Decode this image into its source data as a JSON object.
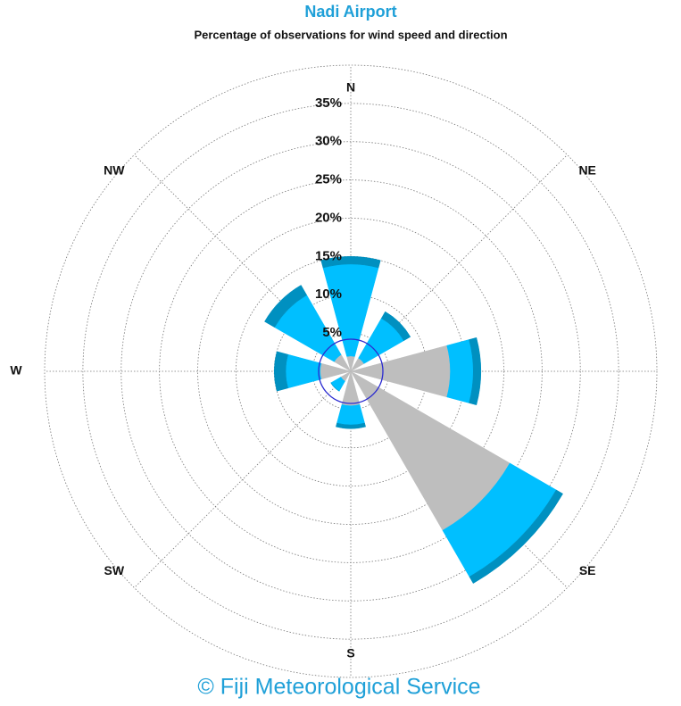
{
  "chart_data": {
    "type": "windrose",
    "title": "Nadi Airport",
    "subtitle": "Percentage of observations for wind speed and direction",
    "footer": "© Fiji Meteorological Service",
    "categories": [
      "N",
      "NE",
      "E",
      "SE",
      "S",
      "SW",
      "W",
      "NW"
    ],
    "series": [
      {
        "color": "#bebebe",
        "values": [
          2,
          2,
          13,
          24,
          4.5,
          1.5,
          4,
          2.5
        ]
      },
      {
        "color": "#00bfff",
        "values": [
          12,
          6,
          3,
          7,
          2.5,
          1.5,
          4.5,
          9
        ]
      },
      {
        "color": "#0090c0",
        "values": [
          1,
          1,
          1,
          1,
          0.5,
          0,
          1.5,
          1.5
        ]
      }
    ],
    "rlim": [
      0,
      40
    ],
    "rticks": [
      {
        "value": 5,
        "label": "5%"
      },
      {
        "value": 10,
        "label": "10%"
      },
      {
        "value": 15,
        "label": "15%"
      },
      {
        "value": 20,
        "label": "20%"
      },
      {
        "value": 25,
        "label": "25%"
      },
      {
        "value": 30,
        "label": "30%"
      },
      {
        "value": 35,
        "label": "35%"
      }
    ],
    "grid": true
  }
}
